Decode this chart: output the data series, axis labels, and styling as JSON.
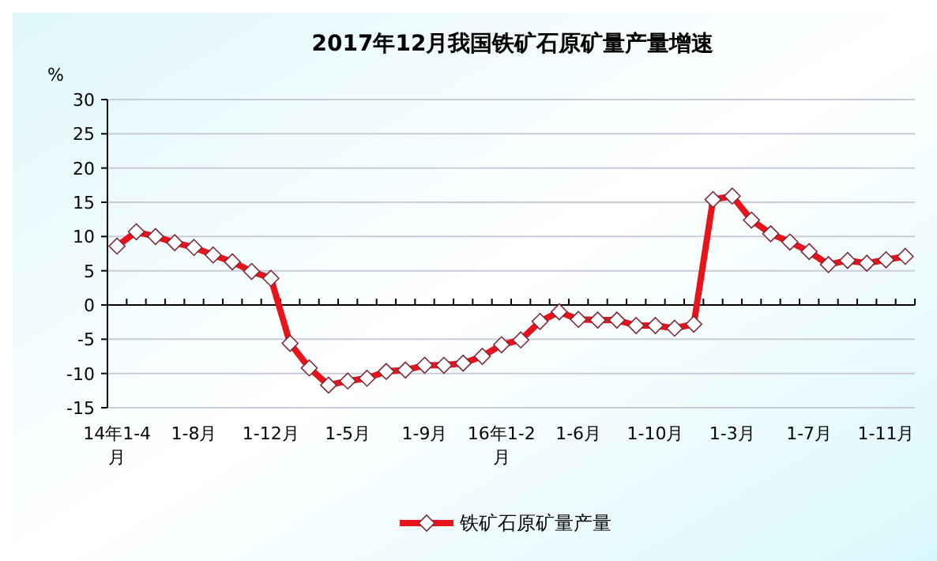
{
  "chart_data": {
    "type": "line",
    "title": "2017年12月我国铁矿石原矿量产量增速",
    "ylabel": "%",
    "categories": [
      "14年1-4月",
      null,
      null,
      null,
      "1-8月",
      null,
      null,
      null,
      "1-12月",
      null,
      null,
      null,
      "1-5月",
      null,
      null,
      null,
      "1-9月",
      null,
      null,
      null,
      "16年1-2月",
      null,
      null,
      null,
      "1-6月",
      null,
      null,
      null,
      "1-10月",
      null,
      null,
      null,
      "1-3月",
      null,
      null,
      null,
      "1-7月",
      null,
      null,
      null,
      "1-11月",
      null
    ],
    "series": [
      {
        "name": "铁矿石原矿量产量",
        "color": "#e8141b",
        "values": [
          8.6,
          10.7,
          10.0,
          9.1,
          8.4,
          7.3,
          6.3,
          4.9,
          3.9,
          -5.6,
          -9.2,
          -11.7,
          -11.1,
          -10.7,
          -9.7,
          -9.5,
          -8.8,
          -8.8,
          -8.5,
          -7.5,
          -5.8,
          -5.1,
          -2.4,
          -1.0,
          -2.1,
          -2.2,
          -2.2,
          -3.0,
          -3.0,
          -3.4,
          -2.8,
          15.4,
          15.9,
          12.4,
          10.4,
          9.2,
          7.8,
          5.9,
          6.5,
          6.1,
          6.6,
          7.1
        ]
      }
    ],
    "ylim": [
      -15,
      30
    ],
    "yticks": [
      -15,
      -10,
      -5,
      0,
      5,
      10,
      15,
      20,
      25,
      30
    ],
    "grid": "y",
    "legend": "bottom",
    "marker": "diamond",
    "line_style": "solid"
  }
}
